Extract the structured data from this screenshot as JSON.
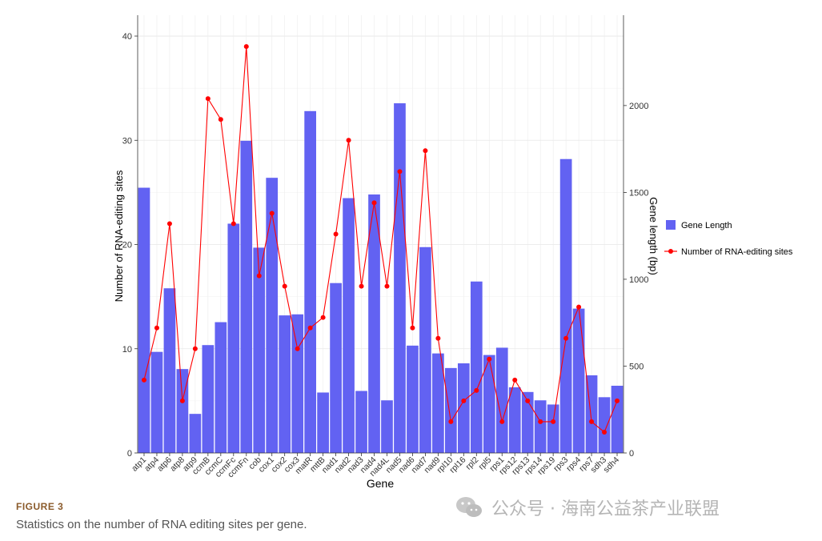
{
  "chart_data": {
    "type": "bar",
    "xlabel": "Gene",
    "ylabel": "Number of RNA-editing sites",
    "y2label": "Gene length (bp)",
    "ylim": [
      0,
      42
    ],
    "y2lim": [
      0,
      2520
    ],
    "yticks": [
      0,
      10,
      20,
      30,
      40
    ],
    "y2ticks": [
      0,
      500,
      1000,
      1500,
      2000
    ],
    "grid": true,
    "legend_position": "right",
    "categories": [
      "atp1",
      "atp4",
      "atp6",
      "atp8",
      "atp9",
      "ccmB",
      "ccmC",
      "ccmFc",
      "ccmFn",
      "cob",
      "cox1",
      "cox2",
      "cox3",
      "matR",
      "mttB",
      "nad1",
      "nad2",
      "nad3",
      "nad4",
      "nad4L",
      "nad5",
      "nad6",
      "nad7",
      "nad9",
      "rpl10",
      "rpl16",
      "rpl2",
      "rpl5",
      "rps1",
      "rps12",
      "rps13",
      "rps14",
      "rps19",
      "rps3",
      "rps4",
      "rps7",
      "sdh3",
      "sdh4"
    ],
    "series": [
      {
        "name": "Gene Length",
        "type": "bar",
        "axis": "right",
        "color": "#6262f2",
        "values": [
          1527,
          582,
          948,
          483,
          225,
          621,
          753,
          1320,
          1797,
          1182,
          1584,
          792,
          798,
          1968,
          348,
          978,
          1467,
          357,
          1488,
          303,
          2013,
          618,
          1185,
          573,
          489,
          516,
          987,
          564,
          606,
          378,
          351,
          303,
          279,
          1692,
          831,
          447,
          321,
          387
        ]
      },
      {
        "name": "Number of RNA-editing sites",
        "type": "line",
        "axis": "left",
        "color": "#ff0000",
        "values": [
          7,
          12,
          22,
          5,
          10,
          34,
          32,
          22,
          39,
          17,
          23,
          16,
          10,
          12,
          13,
          21,
          30,
          16,
          24,
          16,
          27,
          12,
          29,
          11,
          3,
          5,
          6,
          9,
          3,
          7,
          5,
          3,
          3,
          11,
          14,
          3,
          2,
          5
        ]
      }
    ]
  },
  "figure": {
    "label": "FIGURE 3",
    "caption": "Statistics on the number of RNA editing sites per gene."
  },
  "watermark": {
    "text": "公众号 · 海南公益茶产业联盟",
    "icon": "wechat-icon"
  }
}
